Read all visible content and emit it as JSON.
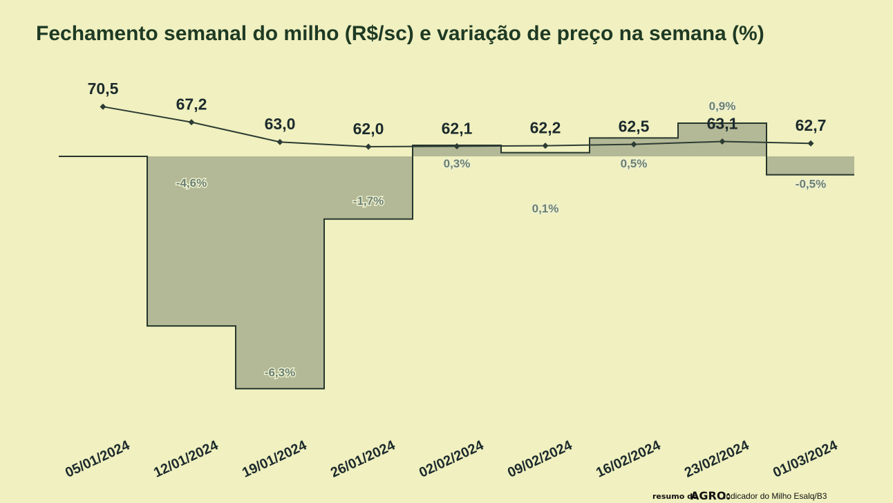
{
  "chart_data": {
    "type": "bar",
    "title": "Fechamento semanal do milho (R$/sc) e variação de preço na semana (%)",
    "categories": [
      "05/01/2024",
      "12/01/2024",
      "19/01/2024",
      "26/01/2024",
      "02/02/2024",
      "09/02/2024",
      "16/02/2024",
      "23/02/2024",
      "01/03/2024"
    ],
    "series": [
      {
        "kind": "line",
        "values": [
          70.5,
          67.2,
          63.0,
          62.0,
          62.1,
          62.2,
          62.5,
          63.1,
          62.7
        ],
        "labels": [
          "70,5",
          "67,2",
          "63,0",
          "62,0",
          "62,1",
          "62,2",
          "62,5",
          "63,1",
          "62,7"
        ]
      },
      {
        "kind": "step-bar",
        "values": [
          null,
          -4.6,
          -6.3,
          -1.7,
          0.3,
          0.1,
          0.5,
          0.9,
          -0.5
        ],
        "labels": [
          "",
          "-4,6%",
          "-6,3%",
          "-1,7%",
          "0,3%",
          "0,1%",
          "0,5%",
          "0,9%",
          "-0,5%"
        ]
      }
    ],
    "grid": false,
    "legend": "none",
    "colors": {
      "background": "#f0f0c0",
      "bar_fill": "#b3b896",
      "bar_stroke": "#25352c",
      "line": "#2c3b33",
      "title": "#1e3a24",
      "pct_label": "#6b7f73"
    }
  },
  "source": {
    "brand_prefix": "resumo do",
    "brand_name": "AGRO:",
    "text": "Indicador do Milho Esalq/B3"
  }
}
